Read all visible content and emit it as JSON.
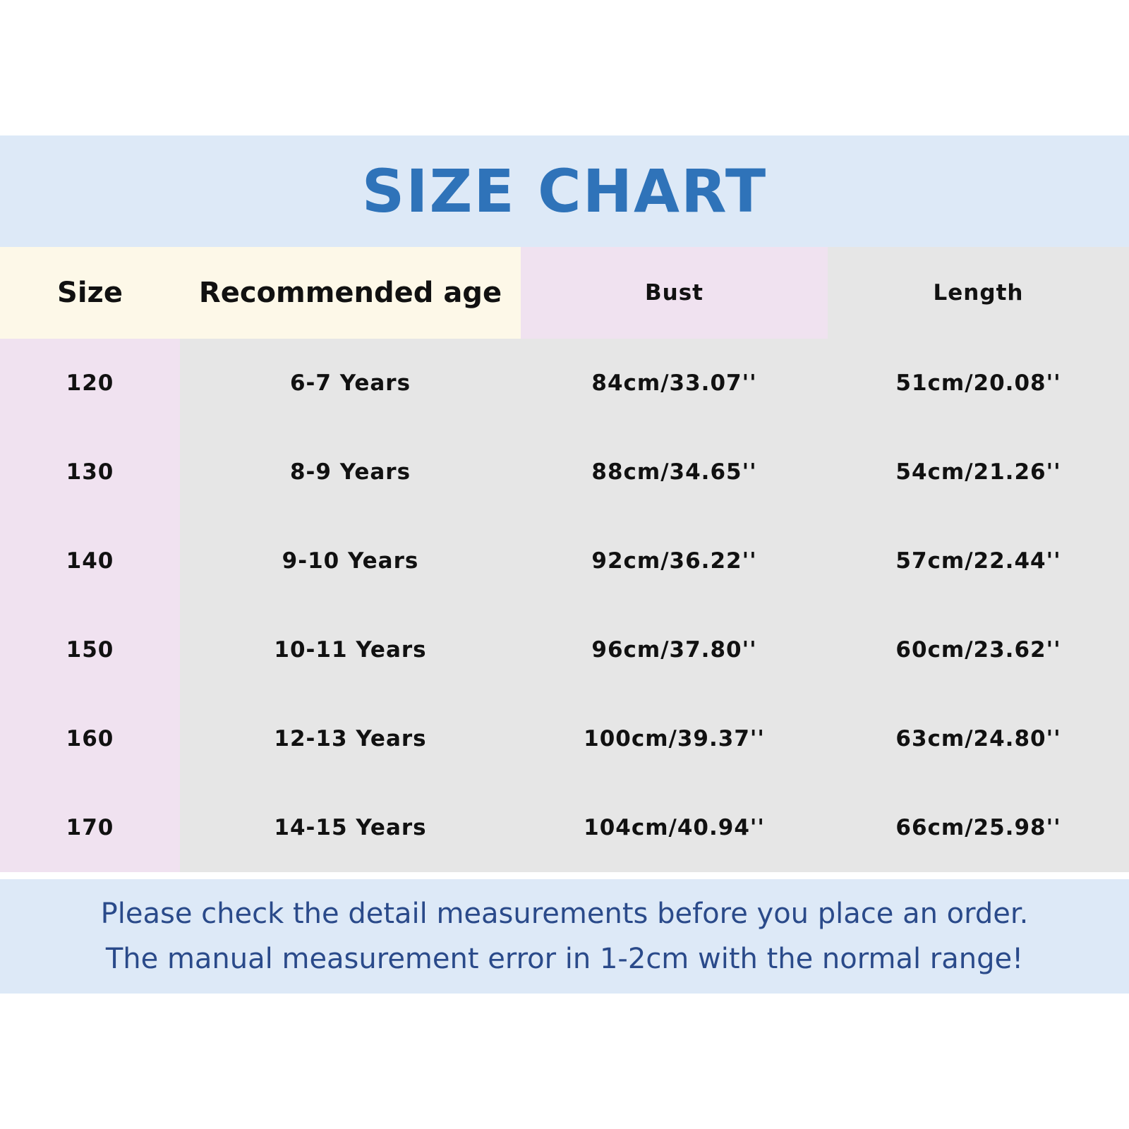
{
  "title": "SIZE CHART",
  "colors": {
    "title": "#2f73b9",
    "band": "#dde9f7",
    "header_cream": "#fdf8e8",
    "pink": "#f0e2f0",
    "gray": "#e6e6e6",
    "footer_text": "#2a4a8a"
  },
  "table": {
    "headers": [
      "Size",
      "Recommended age",
      "Bust",
      "Length"
    ],
    "rows": [
      [
        "120",
        "6-7 Years",
        "84cm/33.07''",
        "51cm/20.08''"
      ],
      [
        "130",
        "8-9 Years",
        "88cm/34.65''",
        "54cm/21.26''"
      ],
      [
        "140",
        "9-10 Years",
        "92cm/36.22''",
        "57cm/22.44''"
      ],
      [
        "150",
        "10-11 Years",
        "96cm/37.80''",
        "60cm/23.62''"
      ],
      [
        "160",
        "12-13 Years",
        "100cm/39.37''",
        "63cm/24.80''"
      ],
      [
        "170",
        "14-15 Years",
        "104cm/40.94''",
        "66cm/25.98''"
      ]
    ]
  },
  "footer": {
    "line1": "Please check the detail measurements before you place an order.",
    "line2": "The manual measurement error in 1-2cm with the normal range!"
  }
}
